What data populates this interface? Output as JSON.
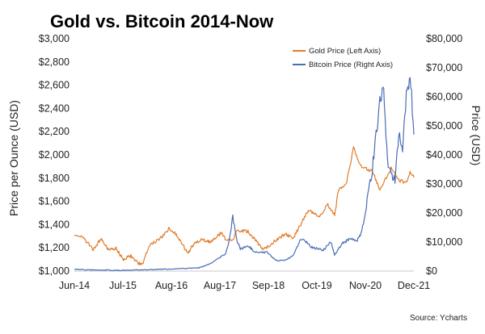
{
  "chart_data": {
    "type": "line",
    "title": "Gold vs. Bitcoin 2014-Now",
    "source": "Source: Ycharts",
    "y_left_label": "Price per Ounce (USD)",
    "y_right_label": "Price (USD)",
    "y_left_range": [
      1000,
      3000
    ],
    "y_right_range": [
      0,
      80000
    ],
    "y_left_ticks": [
      "$1,000",
      "$1,200",
      "$1,400",
      "$1,600",
      "$1,800",
      "$2,000",
      "$2,200",
      "$2,400",
      "$2,600",
      "$2,800",
      "$3,000"
    ],
    "y_right_ticks": [
      "$0",
      "$10,000",
      "$20,000",
      "$30,000",
      "$40,000",
      "$50,000",
      "$60,000",
      "$70,000",
      "$80,000"
    ],
    "x_range": [
      "2014-06",
      "2021-12"
    ],
    "x_ticks": [
      "Jun-14",
      "Jul-15",
      "Aug-16",
      "Aug-17",
      "Sep-18",
      "Oct-19",
      "Nov-20",
      "Dec-21"
    ],
    "grid": false,
    "legend_position": "top-right",
    "series": [
      {
        "name": "Gold Price (Left Axis)",
        "axis": "left",
        "color": "#e07b28",
        "points": [
          [
            "2014-06",
            1320
          ],
          [
            "2014-08",
            1295
          ],
          [
            "2014-10",
            1225
          ],
          [
            "2014-11",
            1180
          ],
          [
            "2015-01",
            1280
          ],
          [
            "2015-03",
            1185
          ],
          [
            "2015-05",
            1195
          ],
          [
            "2015-07",
            1100
          ],
          [
            "2015-09",
            1130
          ],
          [
            "2015-11",
            1065
          ],
          [
            "2015-12",
            1060
          ],
          [
            "2016-02",
            1230
          ],
          [
            "2016-04",
            1265
          ],
          [
            "2016-06",
            1320
          ],
          [
            "2016-07",
            1365
          ],
          [
            "2016-09",
            1320
          ],
          [
            "2016-11",
            1215
          ],
          [
            "2016-12",
            1150
          ],
          [
            "2017-02",
            1250
          ],
          [
            "2017-04",
            1270
          ],
          [
            "2017-06",
            1250
          ],
          [
            "2017-09",
            1330
          ],
          [
            "2017-10",
            1280
          ],
          [
            "2017-12",
            1260
          ],
          [
            "2018-01",
            1350
          ],
          [
            "2018-04",
            1340
          ],
          [
            "2018-06",
            1270
          ],
          [
            "2018-08",
            1180
          ],
          [
            "2018-10",
            1230
          ],
          [
            "2018-12",
            1280
          ],
          [
            "2019-02",
            1320
          ],
          [
            "2019-04",
            1280
          ],
          [
            "2019-06",
            1400
          ],
          [
            "2019-08",
            1520
          ],
          [
            "2019-09",
            1510
          ],
          [
            "2019-11",
            1460
          ],
          [
            "2019-12",
            1520
          ],
          [
            "2020-01",
            1580
          ],
          [
            "2020-03",
            1480
          ],
          [
            "2020-04",
            1700
          ],
          [
            "2020-06",
            1740
          ],
          [
            "2020-08",
            2060
          ],
          [
            "2020-10",
            1900
          ],
          [
            "2020-12",
            1870
          ],
          [
            "2021-01",
            1860
          ],
          [
            "2021-03",
            1700
          ],
          [
            "2021-06",
            1890
          ],
          [
            "2021-08",
            1780
          ],
          [
            "2021-10",
            1760
          ],
          [
            "2021-11",
            1860
          ],
          [
            "2021-12",
            1805
          ]
        ]
      },
      {
        "name": "Bitcoin Price (Right Axis)",
        "axis": "right",
        "color": "#4a6db5",
        "points": [
          [
            "2014-06",
            600
          ],
          [
            "2014-12",
            350
          ],
          [
            "2015-06",
            250
          ],
          [
            "2015-12",
            430
          ],
          [
            "2016-06",
            650
          ],
          [
            "2016-12",
            950
          ],
          [
            "2017-03",
            1100
          ],
          [
            "2017-06",
            2500
          ],
          [
            "2017-08",
            4200
          ],
          [
            "2017-10",
            6000
          ],
          [
            "2017-11",
            10000
          ],
          [
            "2017-12",
            19000
          ],
          [
            "2018-01",
            11000
          ],
          [
            "2018-02",
            7500
          ],
          [
            "2018-04",
            8800
          ],
          [
            "2018-06",
            6400
          ],
          [
            "2018-09",
            6500
          ],
          [
            "2018-11",
            4200
          ],
          [
            "2018-12",
            3500
          ],
          [
            "2019-02",
            3800
          ],
          [
            "2019-04",
            5200
          ],
          [
            "2019-06",
            11000
          ],
          [
            "2019-07",
            10500
          ],
          [
            "2019-09",
            8200
          ],
          [
            "2019-11",
            7500
          ],
          [
            "2019-12",
            7200
          ],
          [
            "2020-02",
            10000
          ],
          [
            "2020-03",
            5500
          ],
          [
            "2020-05",
            9500
          ],
          [
            "2020-07",
            11000
          ],
          [
            "2020-09",
            10700
          ],
          [
            "2020-10",
            13000
          ],
          [
            "2020-11",
            18000
          ],
          [
            "2020-12",
            28000
          ],
          [
            "2021-01",
            35000
          ],
          [
            "2021-02",
            48000
          ],
          [
            "2021-03",
            58000
          ],
          [
            "2021-04",
            63000
          ],
          [
            "2021-05",
            38000
          ],
          [
            "2021-06",
            34000
          ],
          [
            "2021-07",
            31000
          ],
          [
            "2021-08",
            47000
          ],
          [
            "2021-09",
            43000
          ],
          [
            "2021-10",
            61000
          ],
          [
            "2021-11",
            68000
          ],
          [
            "2021-12",
            47000
          ]
        ]
      }
    ]
  }
}
